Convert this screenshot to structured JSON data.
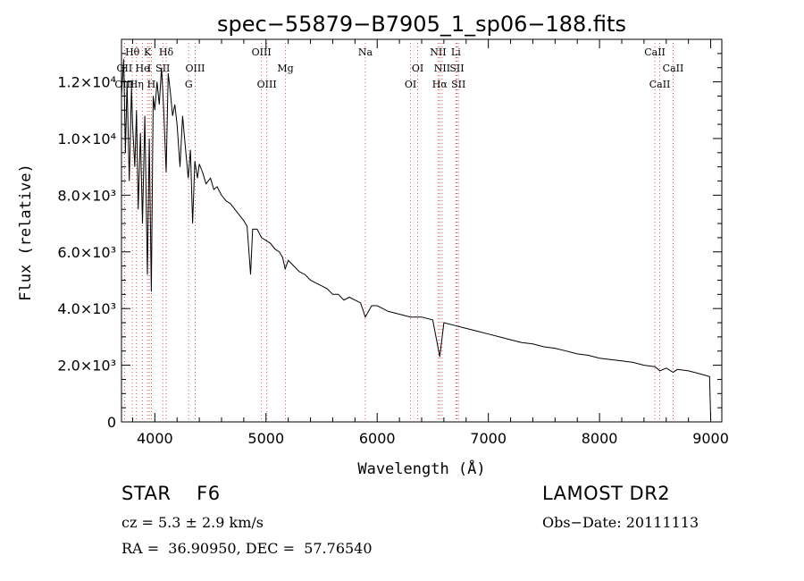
{
  "chart_data": {
    "type": "line",
    "title": "spec−55879−B7905_1_sp06−188.fits",
    "xlabel": "Wavelength (Å)",
    "ylabel": "Flux (relative)",
    "xlim": [
      3700,
      9100
    ],
    "ylim": [
      0,
      13500
    ],
    "x_ticks": [
      4000,
      5000,
      6000,
      7000,
      8000,
      9000
    ],
    "x_tick_labels": [
      "4000",
      "5000",
      "6000",
      "7000",
      "8000",
      "9000"
    ],
    "y_ticks": [
      0,
      2000,
      4000,
      6000,
      8000,
      10000,
      12000
    ],
    "y_tick_labels": [
      "0",
      "2.0×10³",
      "4.0×10³",
      "6.0×10³",
      "8.0×10³",
      "1.0×10⁴",
      "1.2×10⁴"
    ],
    "grid": false,
    "line_color": "#000000",
    "marker_color": "#e05050",
    "series": [
      {
        "x": [
          3700,
          3720,
          3735,
          3750,
          3770,
          3790,
          3800,
          3820,
          3835,
          3850,
          3870,
          3889,
          3910,
          3933,
          3950,
          3968,
          3985,
          4000,
          4020,
          4040,
          4060,
          4080,
          4102,
          4120,
          4140,
          4160,
          4180,
          4200,
          4226,
          4250,
          4270,
          4300,
          4320,
          4340,
          4360,
          4383,
          4400,
          4430,
          4460,
          4500,
          4530,
          4560,
          4600,
          4640,
          4680,
          4720,
          4760,
          4800,
          4830,
          4861,
          4880,
          4920,
          4960,
          5000,
          5040,
          5080,
          5120,
          5150,
          5172,
          5200,
          5250,
          5300,
          5350,
          5400,
          5450,
          5500,
          5550,
          5600,
          5650,
          5700,
          5750,
          5800,
          5850,
          5893,
          5950,
          6000,
          6050,
          6100,
          6200,
          6300,
          6400,
          6500,
          6563,
          6600,
          6700,
          6800,
          6900,
          7000,
          7100,
          7200,
          7300,
          7400,
          7500,
          7600,
          7700,
          7800,
          7900,
          8000,
          8100,
          8200,
          8300,
          8400,
          8500,
          8542,
          8600,
          8662,
          8700,
          8800,
          8900,
          8990,
          9000
        ],
        "y": [
          11500,
          12800,
          9500,
          12000,
          8500,
          11800,
          10500,
          9000,
          11000,
          7500,
          10200,
          7000,
          10800,
          5200,
          10000,
          4600,
          11500,
          11000,
          12000,
          11200,
          12500,
          11000,
          8800,
          12300,
          11600,
          10800,
          11200,
          10500,
          9000,
          10800,
          9900,
          8600,
          9600,
          7000,
          9200,
          8600,
          9100,
          8800,
          8400,
          8600,
          8200,
          8300,
          8000,
          7800,
          7700,
          7500,
          7300,
          7100,
          6900,
          5200,
          6800,
          6800,
          6500,
          6400,
          6300,
          6100,
          6000,
          5800,
          5400,
          5700,
          5500,
          5300,
          5200,
          5000,
          4900,
          4800,
          4700,
          4500,
          4500,
          4300,
          4400,
          4300,
          4200,
          3700,
          4100,
          4100,
          4000,
          3900,
          3800,
          3700,
          3700,
          3600,
          2300,
          3500,
          3400,
          3300,
          3200,
          3100,
          3000,
          2900,
          2800,
          2750,
          2650,
          2600,
          2500,
          2400,
          2350,
          2250,
          2200,
          2150,
          2100,
          2000,
          1950,
          1800,
          1900,
          1750,
          1850,
          1800,
          1700,
          1600,
          50
        ]
      }
    ],
    "lines": [
      {
        "label": "Hθ",
        "wl": 3798,
        "row": 1
      },
      {
        "label": "OII",
        "wl": 3727,
        "row": 2
      },
      {
        "label": "OIII",
        "wl": 3727,
        "row": 3
      },
      {
        "label": "He",
        "wl": 3889,
        "row": 2
      },
      {
        "label": "Hη",
        "wl": 3835,
        "row": 3
      },
      {
        "label": "K",
        "wl": 3934,
        "row": 1
      },
      {
        "label": "I",
        "wl": 3950,
        "row": 2
      },
      {
        "label": "H",
        "wl": 3969,
        "row": 3
      },
      {
        "label": "SII",
        "wl": 4072,
        "row": 2
      },
      {
        "label": "Hδ",
        "wl": 4102,
        "row": 1
      },
      {
        "label": "OIII",
        "wl": 4363,
        "row": 2
      },
      {
        "label": "G",
        "wl": 4305,
        "row": 3
      },
      {
        "label": "OIII",
        "wl": 4959,
        "row": 1
      },
      {
        "label": "OIII",
        "wl": 5007,
        "row": 3
      },
      {
        "label": "Mg",
        "wl": 5175,
        "row": 2
      },
      {
        "label": "Na",
        "wl": 5893,
        "row": 1
      },
      {
        "label": "OI",
        "wl": 6364,
        "row": 2
      },
      {
        "label": "OI",
        "wl": 6300,
        "row": 3
      },
      {
        "label": "NII",
        "wl": 6548,
        "row": 1
      },
      {
        "label": "NII",
        "wl": 6584,
        "row": 2
      },
      {
        "label": "SII",
        "wl": 6717,
        "row": 2
      },
      {
        "label": "Hα",
        "wl": 6563,
        "row": 3
      },
      {
        "label": "SII",
        "wl": 6731,
        "row": 3
      },
      {
        "label": "Li",
        "wl": 6708,
        "row": 1
      },
      {
        "label": "CaII",
        "wl": 8498,
        "row": 1
      },
      {
        "label": "CaII",
        "wl": 8662,
        "row": 2
      },
      {
        "label": "CaII",
        "wl": 8542,
        "row": 3
      }
    ]
  },
  "info": {
    "object": "STAR    F6",
    "velocity": "cz = 5.3 ± 2.9 km/s",
    "coords": "RA =  36.90950, DEC =  57.76540",
    "survey": "LAMOST DR2",
    "obs_date": "Obs−Date: 20111113"
  }
}
